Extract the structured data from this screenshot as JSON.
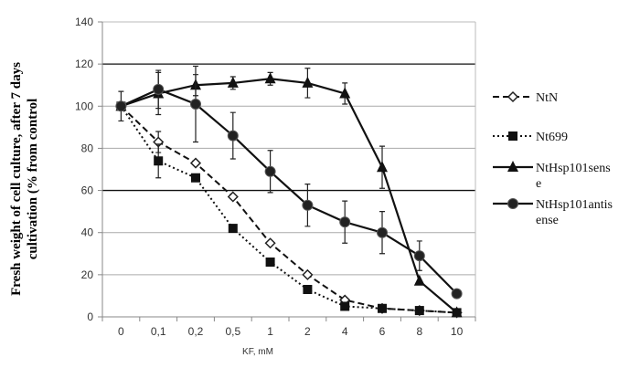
{
  "chart_data": {
    "type": "line",
    "title": "",
    "xlabel": "KF, mM",
    "ylabel_lines": [
      "Fresh weight of cell culture, after 7 days",
      "cultivation (%  from control"
    ],
    "categories": [
      "0",
      "0,1",
      "0,2",
      "0,5",
      "1",
      "2",
      "4",
      "6",
      "8",
      "10"
    ],
    "ylim": [
      0,
      140
    ],
    "yticks": [
      "0",
      "20",
      "40",
      "60",
      "80",
      "100",
      "120",
      "140"
    ],
    "grid": true,
    "legend_position": "right",
    "series": [
      {
        "name": "NtN",
        "marker": "open-diamond",
        "line": "dashed",
        "values": [
          100,
          83,
          73,
          57,
          35,
          20,
          8,
          4,
          3,
          2
        ],
        "errors": [
          0,
          5,
          0,
          0,
          0,
          0,
          0,
          0,
          0,
          0
        ]
      },
      {
        "name": "Nt699",
        "marker": "square",
        "line": "dotted",
        "values": [
          100,
          74,
          66,
          42,
          26,
          13,
          5,
          4,
          3,
          2
        ],
        "errors": [
          0,
          8,
          0,
          0,
          0,
          0,
          0,
          0,
          0,
          0
        ]
      },
      {
        "name": "NtHsp101sense",
        "legend_lines": [
          "NtHsp101sens",
          "e"
        ],
        "marker": "triangle",
        "line": "solid",
        "values": [
          100,
          106,
          110,
          111,
          113,
          111,
          106,
          71,
          17,
          2
        ],
        "errors": [
          0,
          10,
          5,
          3,
          3,
          7,
          5,
          10,
          0,
          0
        ]
      },
      {
        "name": "NtHsp101antisense",
        "legend_lines": [
          "NtHsp101antis",
          "ense"
        ],
        "marker": "circle",
        "line": "solid",
        "values": [
          100,
          108,
          101,
          86,
          69,
          53,
          45,
          40,
          29,
          11
        ],
        "errors": [
          7,
          9,
          18,
          11,
          10,
          10,
          10,
          10,
          7,
          0
        ]
      }
    ]
  }
}
